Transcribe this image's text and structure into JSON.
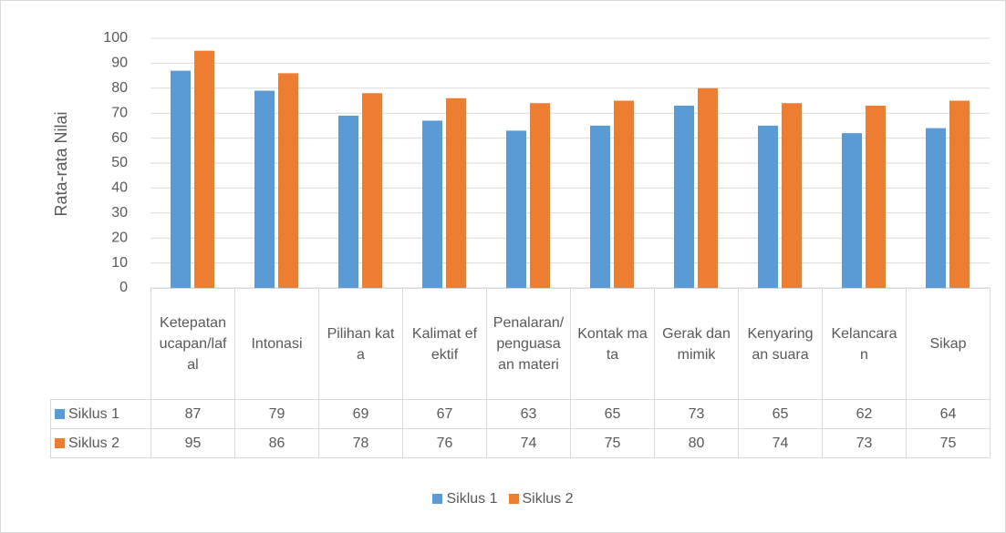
{
  "chart_data": {
    "type": "bar",
    "y_label": "Rata-rata Nilai",
    "categories": [
      "Ketepatan ucapan/lafal",
      "Intonasi",
      "Pilihan kata",
      "Kalimat efektif",
      "Penalaran/penguasaan materi",
      "Kontak mata",
      "Gerak dan mimik",
      "Kenyaringan suara",
      "Kelancaran",
      "Sikap"
    ],
    "series": [
      {
        "name": "Siklus 1",
        "color": "#5b9bd5",
        "values": [
          87,
          79,
          69,
          67,
          63,
          65,
          73,
          65,
          62,
          64
        ]
      },
      {
        "name": "Siklus 2",
        "color": "#ed7d31",
        "values": [
          95,
          86,
          78,
          76,
          74,
          75,
          80,
          74,
          73,
          75
        ]
      }
    ],
    "ylim": [
      0,
      100
    ],
    "yticks": [
      0,
      10,
      20,
      30,
      40,
      50,
      60,
      70,
      80,
      90,
      100
    ],
    "grid": true,
    "legend": "bottom"
  }
}
